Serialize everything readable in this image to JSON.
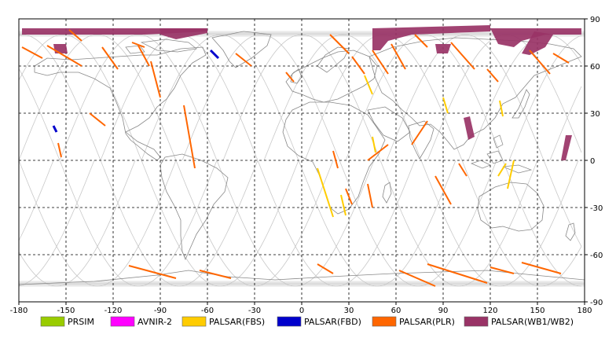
{
  "map": {
    "x_axis": {
      "min": -180,
      "max": 180,
      "ticks": [
        "-180",
        "-150",
        "-120",
        "-90",
        "-60",
        "-30",
        "0",
        "30",
        "60",
        "90",
        "120",
        "150",
        "180"
      ]
    },
    "y_axis": {
      "min": -90,
      "max": 90,
      "ticks": [
        "90",
        "60",
        "30",
        "0",
        "-30",
        "-60",
        "-90"
      ]
    },
    "grid": true,
    "colors": {
      "background": "#ffffff",
      "grid": "#000000",
      "coastline": "#888888",
      "orbit": "#c8c8c8"
    }
  },
  "legend": {
    "placement": "bottom",
    "items": [
      {
        "label": "PRSIM",
        "color": "#99cc00"
      },
      {
        "label": "AVNIR-2",
        "color": "#ff00ff"
      },
      {
        "label": "PALSAR(FBS)",
        "color": "#ffcc00"
      },
      {
        "label": "PALSAR(FBD)",
        "color": "#0000cc"
      },
      {
        "label": "PALSAR(PLR)",
        "color": "#ff6600"
      },
      {
        "label": "PALSAR(WB1/WB2)",
        "color": "#993366"
      }
    ]
  },
  "observations": {
    "wb": [
      [
        [
          -178,
          84
        ],
        [
          -60,
          84
        ],
        [
          -60,
          82
        ],
        [
          -100,
          80
        ],
        [
          -130,
          80
        ],
        [
          -178,
          80
        ]
      ],
      [
        [
          -158,
          74
        ],
        [
          -150,
          74
        ],
        [
          -149,
          68
        ],
        [
          -157,
          68
        ]
      ],
      [
        [
          -90,
          84
        ],
        [
          -60,
          84
        ],
        [
          -60,
          81
        ],
        [
          -80,
          77
        ],
        [
          -90,
          80
        ]
      ],
      [
        [
          45,
          84
        ],
        [
          120,
          86
        ],
        [
          120,
          82
        ],
        [
          70,
          80
        ],
        [
          55,
          76
        ],
        [
          50,
          70
        ],
        [
          45,
          70
        ]
      ],
      [
        [
          120,
          84
        ],
        [
          178,
          84
        ],
        [
          178,
          80
        ],
        [
          155,
          80
        ],
        [
          140,
          76
        ],
        [
          135,
          72
        ],
        [
          125,
          74
        ]
      ],
      [
        [
          148,
          82
        ],
        [
          160,
          80
        ],
        [
          155,
          72
        ],
        [
          145,
          67
        ],
        [
          140,
          68
        ]
      ],
      [
        [
          85,
          74
        ],
        [
          95,
          74
        ],
        [
          93,
          68
        ],
        [
          86,
          68
        ]
      ],
      [
        [
          103,
          27
        ],
        [
          107,
          28
        ],
        [
          110,
          15
        ],
        [
          106,
          13
        ]
      ],
      [
        [
          168,
          16
        ],
        [
          172,
          16
        ],
        [
          168,
          0
        ],
        [
          165,
          0
        ]
      ]
    ],
    "plr": [
      [
        [
          -178,
          72
        ],
        [
          -165,
          65
        ]
      ],
      [
        [
          -162,
          73
        ],
        [
          -140,
          60
        ]
      ],
      [
        [
          -148,
          83
        ],
        [
          -140,
          76
        ]
      ],
      [
        [
          -127,
          72
        ],
        [
          -117,
          58
        ]
      ],
      [
        [
          -104,
          73
        ],
        [
          -97,
          60
        ]
      ],
      [
        [
          -108,
          75
        ],
        [
          -100,
          72
        ]
      ],
      [
        [
          -96,
          63
        ],
        [
          -90,
          40
        ]
      ],
      [
        [
          -75,
          35
        ],
        [
          -68,
          -5
        ]
      ],
      [
        [
          -135,
          30
        ],
        [
          -125,
          22
        ]
      ],
      [
        [
          -155,
          11
        ],
        [
          -153,
          2
        ]
      ],
      [
        [
          -42,
          68
        ],
        [
          -32,
          60
        ]
      ],
      [
        [
          -10,
          56
        ],
        [
          -5,
          50
        ]
      ],
      [
        [
          18,
          80
        ],
        [
          30,
          68
        ]
      ],
      [
        [
          32,
          66
        ],
        [
          40,
          55
        ]
      ],
      [
        [
          45,
          70
        ],
        [
          55,
          55
        ]
      ],
      [
        [
          57,
          74
        ],
        [
          66,
          58
        ]
      ],
      [
        [
          72,
          80
        ],
        [
          80,
          72
        ]
      ],
      [
        [
          95,
          75
        ],
        [
          110,
          58
        ]
      ],
      [
        [
          118,
          58
        ],
        [
          125,
          50
        ]
      ],
      [
        [
          145,
          70
        ],
        [
          158,
          55
        ]
      ],
      [
        [
          160,
          68
        ],
        [
          170,
          62
        ]
      ],
      [
        [
          55,
          10
        ],
        [
          42,
          0
        ]
      ],
      [
        [
          80,
          25
        ],
        [
          70,
          10
        ]
      ],
      [
        [
          20,
          6
        ],
        [
          23,
          -5
        ]
      ],
      [
        [
          28,
          -18
        ],
        [
          32,
          -28
        ]
      ],
      [
        [
          42,
          -15
        ],
        [
          45,
          -30
        ]
      ],
      [
        [
          85,
          -10
        ],
        [
          95,
          -28
        ]
      ],
      [
        [
          100,
          -2
        ],
        [
          105,
          -10
        ]
      ],
      [
        [
          -110,
          -67
        ],
        [
          -80,
          -75
        ]
      ],
      [
        [
          -65,
          -70
        ],
        [
          -45,
          -75
        ]
      ],
      [
        [
          10,
          -66
        ],
        [
          20,
          -72
        ]
      ],
      [
        [
          62,
          -70
        ],
        [
          85,
          -80
        ]
      ],
      [
        [
          80,
          -66
        ],
        [
          118,
          -78
        ]
      ],
      [
        [
          120,
          -68
        ],
        [
          135,
          -72
        ]
      ],
      [
        [
          140,
          -65
        ],
        [
          165,
          -72
        ]
      ]
    ],
    "fbs": [
      [
        [
          40,
          54
        ],
        [
          45,
          42
        ]
      ],
      [
        [
          10,
          -5
        ],
        [
          20,
          -36
        ]
      ],
      [
        [
          25,
          -22
        ],
        [
          28,
          -35
        ]
      ],
      [
        [
          90,
          40
        ],
        [
          93,
          30
        ]
      ],
      [
        [
          126,
          38
        ],
        [
          128,
          28
        ]
      ],
      [
        [
          130,
          -2
        ],
        [
          125,
          -10
        ]
      ],
      [
        [
          135,
          0
        ],
        [
          131,
          -18
        ]
      ],
      [
        [
          45,
          15
        ],
        [
          47,
          5
        ]
      ]
    ],
    "fbd": [
      [
        [
          -58,
          70
        ],
        [
          -53,
          65
        ]
      ],
      [
        [
          -158,
          22
        ],
        [
          -156,
          18
        ]
      ]
    ]
  }
}
